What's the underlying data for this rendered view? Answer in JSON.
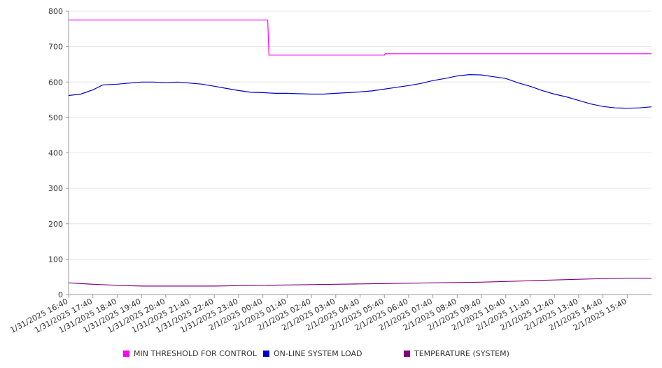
{
  "chart_data": {
    "type": "line",
    "y_ticks": [
      "0",
      "100",
      "200",
      "300",
      "400",
      "500",
      "600",
      "700",
      "800"
    ],
    "ylim": [
      0,
      800
    ],
    "x_ticks": [
      "1/31/2025 16:40",
      "1/31/2025 17:40",
      "1/31/2025 18:40",
      "1/31/2025 19:40",
      "1/31/2025 20:40",
      "1/31/2025 21:40",
      "1/31/2025 22:40",
      "1/31/2025 23:40",
      "2/1/2025 00:40",
      "2/1/2025 01:40",
      "2/1/2025 02:40",
      "2/1/2025 03:40",
      "2/1/2025 04:40",
      "2/1/2025 05:40",
      "2/1/2025 06:40",
      "2/1/2025 07:40",
      "2/1/2025 08:40",
      "2/1/2025 09:40",
      "2/1/2025 10:40",
      "2/1/2025 11:40",
      "2/1/2025 12:40",
      "2/1/2025 13:40",
      "2/1/2025 14:40",
      "2/1/2025 15:40"
    ],
    "grid": true,
    "legend_position": "bottom",
    "series": [
      {
        "name": "MIN THRESHOLD FOR CONTROL",
        "color": "#ff00ff",
        "points": [
          [
            "1/31/2025 16:40",
            775
          ],
          [
            "1/31/2025 23:40",
            775
          ],
          [
            "2/1/2025 00:40",
            775
          ],
          [
            "2/1/2025 00:52",
            775
          ],
          [
            "2/1/2025 00:55",
            676
          ],
          [
            "2/1/2025 05:40",
            676
          ],
          [
            "2/1/2025 05:42",
            680
          ],
          [
            "2/1/2025 16:40",
            680
          ]
        ]
      },
      {
        "name": "ON-LINE SYSTEM LOAD",
        "color": "#0000cc",
        "points": [
          [
            "1/31/2025 16:40",
            562
          ],
          [
            "1/31/2025 17:10",
            566
          ],
          [
            "1/31/2025 17:40",
            578
          ],
          [
            "1/31/2025 18:05",
            592
          ],
          [
            "1/31/2025 18:40",
            594
          ],
          [
            "1/31/2025 19:10",
            597
          ],
          [
            "1/31/2025 19:40",
            600
          ],
          [
            "1/31/2025 20:10",
            600
          ],
          [
            "1/31/2025 20:40",
            598
          ],
          [
            "1/31/2025 21:10",
            600
          ],
          [
            "1/31/2025 21:40",
            597
          ],
          [
            "1/31/2025 22:10",
            594
          ],
          [
            "1/31/2025 22:40",
            588
          ],
          [
            "1/31/2025 23:10",
            582
          ],
          [
            "1/31/2025 23:40",
            576
          ],
          [
            "2/1/2025 00:10",
            571
          ],
          [
            "2/1/2025 00:40",
            570
          ],
          [
            "2/1/2025 01:10",
            568
          ],
          [
            "2/1/2025 01:40",
            568
          ],
          [
            "2/1/2025 02:10",
            567
          ],
          [
            "2/1/2025 02:40",
            566
          ],
          [
            "2/1/2025 03:10",
            566
          ],
          [
            "2/1/2025 03:40",
            568
          ],
          [
            "2/1/2025 04:10",
            570
          ],
          [
            "2/1/2025 04:40",
            572
          ],
          [
            "2/1/2025 05:10",
            575
          ],
          [
            "2/1/2025 05:40",
            580
          ],
          [
            "2/1/2025 06:10",
            585
          ],
          [
            "2/1/2025 06:40",
            590
          ],
          [
            "2/1/2025 07:10",
            596
          ],
          [
            "2/1/2025 07:40",
            604
          ],
          [
            "2/1/2025 08:10",
            610
          ],
          [
            "2/1/2025 08:40",
            617
          ],
          [
            "2/1/2025 09:10",
            621
          ],
          [
            "2/1/2025 09:40",
            620
          ],
          [
            "2/1/2025 10:10",
            615
          ],
          [
            "2/1/2025 10:40",
            610
          ],
          [
            "2/1/2025 11:10",
            598
          ],
          [
            "2/1/2025 11:40",
            588
          ],
          [
            "2/1/2025 12:10",
            576
          ],
          [
            "2/1/2025 12:40",
            566
          ],
          [
            "2/1/2025 13:10",
            558
          ],
          [
            "2/1/2025 13:40",
            548
          ],
          [
            "2/1/2025 14:10",
            538
          ],
          [
            "2/1/2025 14:40",
            531
          ],
          [
            "2/1/2025 15:10",
            527
          ],
          [
            "2/1/2025 15:40",
            526
          ],
          [
            "2/1/2025 16:10",
            527
          ],
          [
            "2/1/2025 16:40",
            530
          ]
        ]
      },
      {
        "name": "TEMPERATURE (SYSTEM)",
        "color": "#800080",
        "points": [
          [
            "1/31/2025 16:40",
            33
          ],
          [
            "1/31/2025 17:40",
            29
          ],
          [
            "1/31/2025 18:40",
            26
          ],
          [
            "1/31/2025 19:40",
            24
          ],
          [
            "1/31/2025 20:40",
            24
          ],
          [
            "1/31/2025 21:40",
            24
          ],
          [
            "1/31/2025 22:40",
            24
          ],
          [
            "1/31/2025 23:40",
            25
          ],
          [
            "2/1/2025 00:40",
            26
          ],
          [
            "2/1/2025 01:40",
            27
          ],
          [
            "2/1/2025 02:40",
            28
          ],
          [
            "2/1/2025 03:40",
            29
          ],
          [
            "2/1/2025 04:40",
            30
          ],
          [
            "2/1/2025 05:40",
            31
          ],
          [
            "2/1/2025 06:40",
            32
          ],
          [
            "2/1/2025 07:40",
            33
          ],
          [
            "2/1/2025 08:40",
            34
          ],
          [
            "2/1/2025 09:40",
            35
          ],
          [
            "2/1/2025 10:40",
            37
          ],
          [
            "2/1/2025 11:40",
            39
          ],
          [
            "2/1/2025 12:40",
            41
          ],
          [
            "2/1/2025 13:40",
            43
          ],
          [
            "2/1/2025 14:40",
            45
          ],
          [
            "2/1/2025 15:40",
            46
          ],
          [
            "2/1/2025 16:40",
            46
          ]
        ]
      }
    ]
  }
}
